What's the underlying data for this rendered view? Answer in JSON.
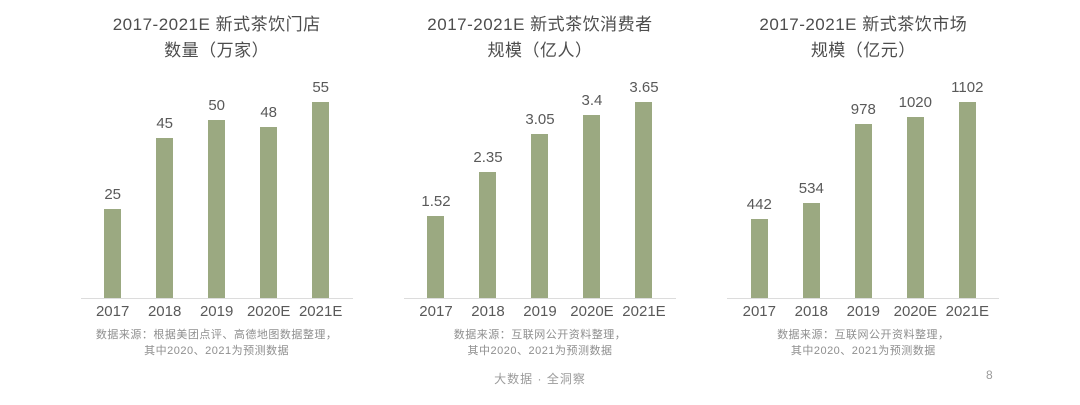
{
  "page": {
    "footer": "大数据 · 全洞察",
    "page_number": "8"
  },
  "colors": {
    "bar": "#9BA981",
    "title_text": "#4d4d4d",
    "label_text": "#595959",
    "note_text": "#8f8f8f",
    "axis_line": "#dcdcdc"
  },
  "chart_data": [
    {
      "type": "bar",
      "title_line1": "2017-2021E 新式茶饮门店",
      "title_line2": "数量（万家）",
      "categories": [
        "2017",
        "2018",
        "2019",
        "2020E",
        "2021E"
      ],
      "values": [
        25,
        45,
        50,
        48,
        55
      ],
      "value_labels": [
        "25",
        "45",
        "50",
        "48",
        "55"
      ],
      "ylim": [
        0,
        55
      ],
      "grid": false,
      "legend": "none",
      "note_line1": "数据来源：根据美团点评、高德地图数据整理，",
      "note_line2": "其中2020、2021为预测数据"
    },
    {
      "type": "bar",
      "title_line1": "2017-2021E 新式茶饮消费者",
      "title_line2": "规模（亿人）",
      "categories": [
        "2017",
        "2018",
        "2019",
        "2020E",
        "2021E"
      ],
      "values": [
        1.52,
        2.35,
        3.05,
        3.4,
        3.65
      ],
      "value_labels": [
        "1.52",
        "2.35",
        "3.05",
        "3.4",
        "3.65"
      ],
      "ylim": [
        0,
        3.65
      ],
      "grid": false,
      "legend": "none",
      "note_line1": "数据来源：互联网公开资料整理，",
      "note_line2": "其中2020、2021为预测数据"
    },
    {
      "type": "bar",
      "title_line1": "2017-2021E 新式茶饮市场",
      "title_line2": "规模（亿元）",
      "categories": [
        "2017",
        "2018",
        "2019",
        "2020E",
        "2021E"
      ],
      "values": [
        442,
        534,
        978,
        1020,
        1102
      ],
      "value_labels": [
        "442",
        "534",
        "978",
        "1020",
        "1102"
      ],
      "ylim": [
        0,
        1102
      ],
      "grid": false,
      "legend": "none",
      "note_line1": "数据来源：互联网公开资料整理，",
      "note_line2": "其中2020、2021为预测数据"
    }
  ]
}
